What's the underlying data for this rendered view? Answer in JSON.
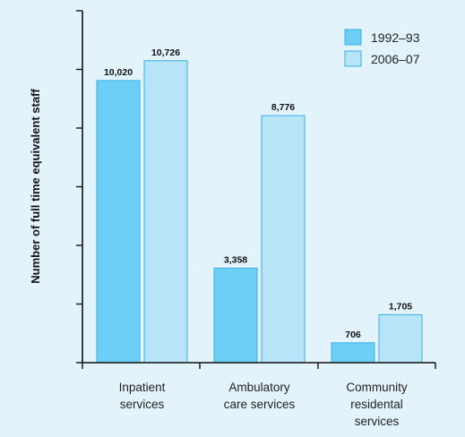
{
  "chart_data": {
    "type": "bar",
    "ylabel": "Number of full time equivalent staff",
    "xlabel": "",
    "categories": [
      [
        "Inpatient",
        "services"
      ],
      [
        "Ambulatory",
        "care services"
      ],
      [
        "Community",
        "residental",
        "services"
      ]
    ],
    "series": [
      {
        "name": "1992–93",
        "color": "#6dcff6",
        "values": [
          10020,
          3358,
          706
        ],
        "labels": [
          "10,020",
          "3,358",
          "706"
        ]
      },
      {
        "name": "2006–07",
        "color": "#b8e4f8",
        "values": [
          10726,
          8776,
          1705
        ],
        "labels": [
          "10,726",
          "8,776",
          "1,705"
        ]
      }
    ],
    "ylim": [
      0,
      12500
    ],
    "y_tick_count": 6,
    "grid": false,
    "legend_position": "top-right"
  }
}
